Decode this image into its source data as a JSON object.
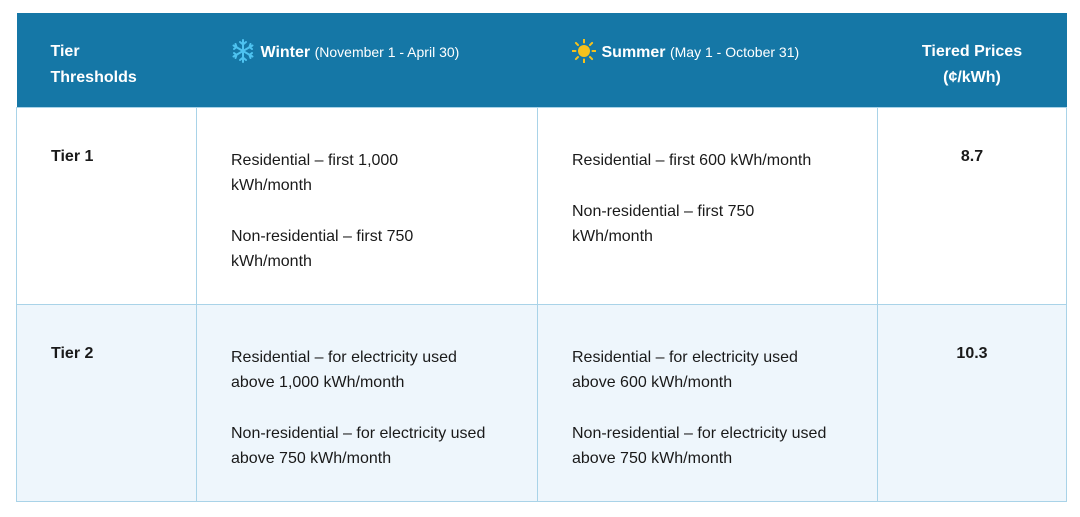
{
  "header": {
    "col1": "Tier Thresholds",
    "winter": {
      "icon": "snowflake-icon",
      "name": "Winter",
      "range": "(November 1 - April 30)"
    },
    "summer": {
      "icon": "sun-icon",
      "name": "Summer",
      "range": "(May 1 - October 31)"
    },
    "col4": "Tiered Prices (¢/kWh)"
  },
  "rows": [
    {
      "tier": "Tier 1",
      "winter_residential": "Residential – first 1,000 kWh/month",
      "winter_nonresidential": "Non-residential – first 750 kWh/month",
      "summer_residential": "Residential – first 600 kWh/month",
      "summer_nonresidential": "Non-residential – first 750 kWh/month",
      "price": "8.7"
    },
    {
      "tier": "Tier 2",
      "winter_residential": "Residential – for electricity used above 1,000 kWh/month",
      "winter_nonresidential": "Non-residential – for electricity used above 750 kWh/month",
      "summer_residential": "Residential – for electricity used above 600 kWh/month",
      "summer_nonresidential": "Non-residential – for electricity used above 750 kWh/month",
      "price": "10.3"
    }
  ],
  "colors": {
    "header_bg": "#1577a6",
    "row2_bg": "#eef6fc",
    "border": "#a9d3e8",
    "snowflake": "#4ec3f0",
    "sun": "#f6c21c"
  }
}
